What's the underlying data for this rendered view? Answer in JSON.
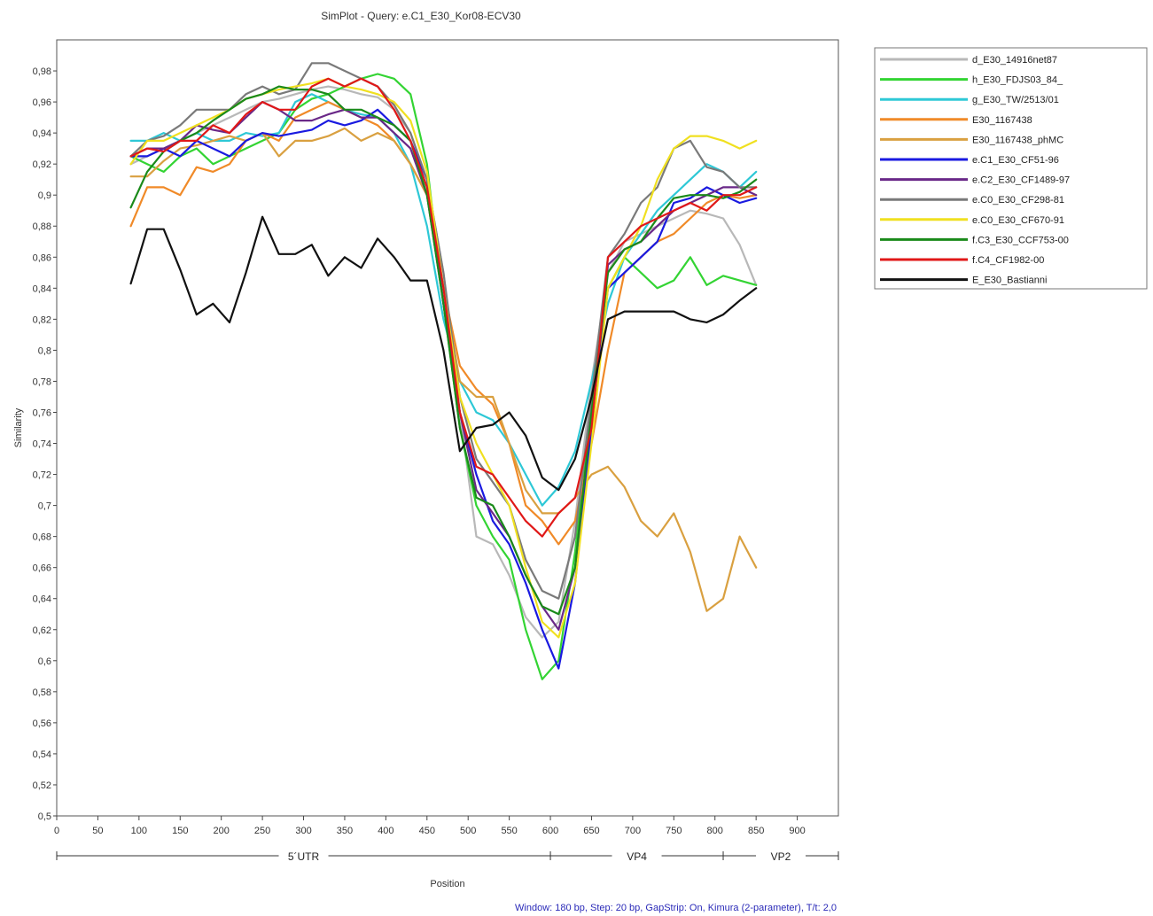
{
  "chart_data": {
    "type": "line",
    "title": "SimPlot - Query: e.C1_E30_Kor08-ECV30",
    "xlabel": "Position",
    "ylabel": "Similarity",
    "xlim": [
      0,
      950
    ],
    "ylim": [
      0.5,
      1.0
    ],
    "x_ticks": [
      0,
      50,
      100,
      150,
      200,
      250,
      300,
      350,
      400,
      450,
      500,
      550,
      600,
      650,
      700,
      750,
      800,
      850,
      900
    ],
    "y_ticks": [
      0.5,
      0.52,
      0.54,
      0.56,
      0.58,
      0.6,
      0.62,
      0.64,
      0.66,
      0.68,
      0.7,
      0.72,
      0.74,
      0.76,
      0.78,
      0.8,
      0.82,
      0.84,
      0.86,
      0.88,
      0.9,
      0.92,
      0.94,
      0.96,
      0.98
    ],
    "y_tick_labels": [
      "0,5",
      "0,52",
      "0,54",
      "0,56",
      "0,58",
      "0,6",
      "0,62",
      "0,64",
      "0,66",
      "0,68",
      "0,7",
      "0,72",
      "0,74",
      "0,76",
      "0,78",
      "0,8",
      "0,82",
      "0,84",
      "0,86",
      "0,88",
      "0,9",
      "0,92",
      "0,94",
      "0,96",
      "0,98"
    ],
    "grid": false,
    "legend_position": "right",
    "regions": [
      {
        "label": "5´UTR",
        "start": 0,
        "end": 600
      },
      {
        "label": "VP4",
        "start": 600,
        "end": 810
      },
      {
        "label": "VP2",
        "start": 810,
        "end": 950
      }
    ],
    "x": [
      90,
      110,
      130,
      150,
      170,
      190,
      210,
      230,
      250,
      270,
      290,
      310,
      330,
      350,
      370,
      390,
      410,
      430,
      450,
      470,
      490,
      510,
      530,
      550,
      570,
      590,
      610,
      630,
      650,
      670,
      690,
      710,
      730,
      750,
      770,
      790,
      810,
      830,
      850
    ],
    "series": [
      {
        "name": "d_E30_14916net87",
        "color": "#b8b8b8",
        "values": [
          0.92,
          0.925,
          0.93,
          0.935,
          0.94,
          0.945,
          0.95,
          0.955,
          0.96,
          0.962,
          0.965,
          0.968,
          0.97,
          0.968,
          0.965,
          0.963,
          0.955,
          0.94,
          0.91,
          0.85,
          0.76,
          0.68,
          0.675,
          0.655,
          0.628,
          0.615,
          0.625,
          0.69,
          0.78,
          0.85,
          0.87,
          0.875,
          0.88,
          0.885,
          0.89,
          0.888,
          0.885,
          0.868,
          0.842
        ]
      },
      {
        "name": "h_E30_FDJS03_84_",
        "color": "#33d433",
        "values": [
          0.925,
          0.92,
          0.915,
          0.925,
          0.93,
          0.92,
          0.925,
          0.93,
          0.935,
          0.94,
          0.955,
          0.962,
          0.965,
          0.97,
          0.975,
          0.978,
          0.975,
          0.965,
          0.92,
          0.83,
          0.75,
          0.7,
          0.68,
          0.665,
          0.62,
          0.588,
          0.6,
          0.67,
          0.77,
          0.84,
          0.86,
          0.85,
          0.84,
          0.845,
          0.86,
          0.842,
          0.848,
          0.845,
          0.842
        ]
      },
      {
        "name": "g_E30_TW/2513/01",
        "color": "#2ec8d6",
        "values": [
          0.935,
          0.935,
          0.94,
          0.935,
          0.94,
          0.935,
          0.935,
          0.94,
          0.938,
          0.94,
          0.96,
          0.965,
          0.96,
          0.955,
          0.952,
          0.95,
          0.94,
          0.92,
          0.88,
          0.82,
          0.78,
          0.76,
          0.755,
          0.74,
          0.72,
          0.7,
          0.712,
          0.735,
          0.78,
          0.83,
          0.86,
          0.875,
          0.89,
          0.9,
          0.91,
          0.92,
          0.915,
          0.905,
          0.915
        ]
      },
      {
        "name": "E30_1167438",
        "color": "#f08a28",
        "values": [
          0.88,
          0.905,
          0.905,
          0.9,
          0.918,
          0.915,
          0.92,
          0.935,
          0.94,
          0.935,
          0.95,
          0.955,
          0.96,
          0.955,
          0.95,
          0.945,
          0.935,
          0.92,
          0.9,
          0.84,
          0.79,
          0.775,
          0.765,
          0.74,
          0.7,
          0.69,
          0.675,
          0.69,
          0.74,
          0.8,
          0.85,
          0.86,
          0.87,
          0.875,
          0.885,
          0.895,
          0.9,
          0.898,
          0.9
        ]
      },
      {
        "name": "E30_1167438_phMC",
        "color": "#d9a040",
        "values": [
          0.912,
          0.912,
          0.922,
          0.93,
          0.932,
          0.935,
          0.938,
          0.935,
          0.94,
          0.925,
          0.935,
          0.935,
          0.938,
          0.943,
          0.935,
          0.94,
          0.935,
          0.92,
          0.9,
          0.84,
          0.78,
          0.77,
          0.77,
          0.74,
          0.71,
          0.695,
          0.695,
          0.705,
          0.72,
          0.725,
          0.712,
          0.69,
          0.68,
          0.695,
          0.67,
          0.632,
          0.64,
          0.68,
          0.66
        ]
      },
      {
        "name": "e.C1_E30_CF51-96",
        "color": "#1a1ae0",
        "values": [
          0.925,
          0.925,
          0.93,
          0.925,
          0.935,
          0.93,
          0.925,
          0.935,
          0.94,
          0.938,
          0.94,
          0.942,
          0.948,
          0.945,
          0.948,
          0.955,
          0.945,
          0.935,
          0.91,
          0.83,
          0.76,
          0.72,
          0.69,
          0.675,
          0.65,
          0.62,
          0.595,
          0.65,
          0.75,
          0.84,
          0.85,
          0.86,
          0.87,
          0.895,
          0.898,
          0.905,
          0.9,
          0.895,
          0.898
        ]
      },
      {
        "name": "e.C2_E30_CF1489-97",
        "color": "#6a2888",
        "values": [
          0.925,
          0.93,
          0.93,
          0.935,
          0.945,
          0.942,
          0.94,
          0.95,
          0.96,
          0.955,
          0.948,
          0.948,
          0.952,
          0.955,
          0.95,
          0.95,
          0.94,
          0.93,
          0.9,
          0.83,
          0.76,
          0.71,
          0.695,
          0.68,
          0.655,
          0.635,
          0.62,
          0.66,
          0.76,
          0.855,
          0.865,
          0.87,
          0.88,
          0.89,
          0.895,
          0.9,
          0.905,
          0.905,
          0.9
        ]
      },
      {
        "name": "e.C0_E30_CF298-81",
        "color": "#7a7a7a",
        "values": [
          0.925,
          0.935,
          0.938,
          0.945,
          0.955,
          0.955,
          0.955,
          0.965,
          0.97,
          0.965,
          0.968,
          0.985,
          0.985,
          0.98,
          0.975,
          0.97,
          0.958,
          0.94,
          0.91,
          0.85,
          0.77,
          0.73,
          0.715,
          0.7,
          0.665,
          0.645,
          0.64,
          0.68,
          0.77,
          0.86,
          0.875,
          0.895,
          0.905,
          0.93,
          0.935,
          0.918,
          0.915,
          0.905,
          0.905
        ]
      },
      {
        "name": "e.C0_E30_CF670-91",
        "color": "#f0e020",
        "values": [
          0.92,
          0.935,
          0.935,
          0.94,
          0.945,
          0.95,
          0.955,
          0.962,
          0.965,
          0.968,
          0.97,
          0.972,
          0.975,
          0.97,
          0.968,
          0.965,
          0.96,
          0.948,
          0.915,
          0.84,
          0.77,
          0.74,
          0.72,
          0.7,
          0.66,
          0.625,
          0.615,
          0.65,
          0.74,
          0.84,
          0.86,
          0.88,
          0.91,
          0.93,
          0.938,
          0.938,
          0.935,
          0.93,
          0.935
        ]
      },
      {
        "name": "f.C3_E30_CCF753-00",
        "color": "#1a8a1a",
        "values": [
          0.892,
          0.915,
          0.928,
          0.935,
          0.94,
          0.948,
          0.955,
          0.962,
          0.965,
          0.97,
          0.968,
          0.968,
          0.965,
          0.955,
          0.955,
          0.95,
          0.945,
          0.935,
          0.9,
          0.83,
          0.75,
          0.705,
          0.7,
          0.68,
          0.655,
          0.635,
          0.63,
          0.66,
          0.76,
          0.85,
          0.865,
          0.87,
          0.885,
          0.898,
          0.9,
          0.9,
          0.898,
          0.902,
          0.91
        ]
      },
      {
        "name": "f.C4_CF1982-00",
        "color": "#e01818",
        "values": [
          0.925,
          0.93,
          0.928,
          0.935,
          0.935,
          0.945,
          0.94,
          0.952,
          0.96,
          0.955,
          0.955,
          0.97,
          0.975,
          0.97,
          0.975,
          0.97,
          0.955,
          0.935,
          0.905,
          0.84,
          0.76,
          0.725,
          0.72,
          0.705,
          0.69,
          0.68,
          0.695,
          0.705,
          0.75,
          0.86,
          0.87,
          0.88,
          0.885,
          0.89,
          0.895,
          0.89,
          0.9,
          0.9,
          0.905
        ]
      },
      {
        "name": "E_E30_Bastianni",
        "color": "#111111",
        "values": [
          0.843,
          0.878,
          0.878,
          0.852,
          0.823,
          0.83,
          0.818,
          0.85,
          0.886,
          0.862,
          0.862,
          0.868,
          0.848,
          0.86,
          0.853,
          0.872,
          0.86,
          0.845,
          0.845,
          0.8,
          0.735,
          0.75,
          0.752,
          0.76,
          0.745,
          0.718,
          0.71,
          0.73,
          0.77,
          0.82,
          0.825,
          0.825,
          0.825,
          0.825,
          0.82,
          0.818,
          0.823,
          0.832,
          0.84
        ]
      }
    ],
    "footnote": "Window: 180 bp, Step: 20 bp, GapStrip: On, Kimura (2-parameter), T/t: 2,0"
  }
}
